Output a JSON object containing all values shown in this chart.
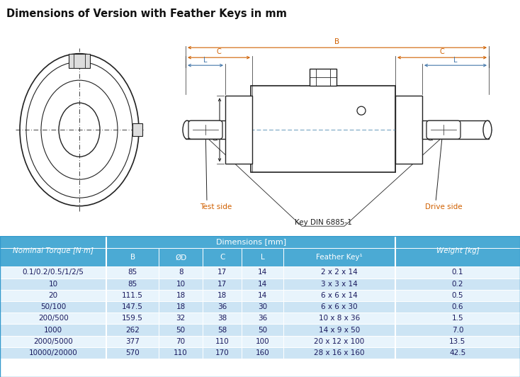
{
  "title": "Dimensions of Version with Feather Keys in mm",
  "title_bg": "#cce0f0",
  "table_header_bg": "#4baad4",
  "table_row_light": "#e8f4fc",
  "table_row_dark": "#cce4f4",
  "rows": [
    [
      "0.1/0.2/0.5/1/2/5",
      "85",
      "8",
      "17",
      "14",
      "2 x 2 x 14",
      "0.1"
    ],
    [
      "10",
      "85",
      "10",
      "17",
      "14",
      "3 x 3 x 14",
      "0.2"
    ],
    [
      "20",
      "111.5",
      "18",
      "18",
      "14",
      "6 x 6 x 14",
      "0.5"
    ],
    [
      "50/100",
      "147.5",
      "18",
      "36",
      "30",
      "6 x 6 x 30",
      "0.6"
    ],
    [
      "200/500",
      "159.5",
      "32",
      "38",
      "36",
      "10 x 8 x 36",
      "1.5"
    ],
    [
      "1000",
      "262",
      "50",
      "58",
      "50",
      "14 x 9 x 50",
      "7.0"
    ],
    [
      "2000/5000",
      "377",
      "70",
      "110",
      "100",
      "20 x 12 x 100",
      "13.5"
    ],
    [
      "10000/20000",
      "570",
      "110",
      "170",
      "160",
      "28 x 16 x 160",
      "42.5"
    ]
  ],
  "dim_header": "Dimensions [mm]",
  "orange": "#d06000",
  "blue_dim": "#4477aa",
  "lc": "#222222",
  "bg": "#ffffff",
  "title_text_color": "#111111"
}
